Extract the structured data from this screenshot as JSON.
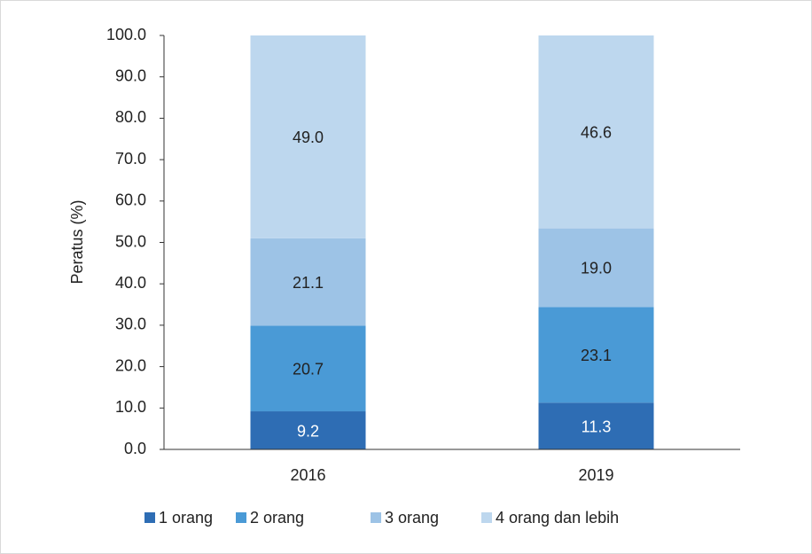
{
  "chart_data": {
    "type": "stacked_bar",
    "y_label": "Peratus (%)",
    "categories": [
      "2016",
      "2019"
    ],
    "series": [
      {
        "name": "1 orang",
        "color": "#2e6db4",
        "values": [
          9.2,
          11.3
        ],
        "value_labels": [
          "9.2",
          "11.3"
        ]
      },
      {
        "name": "2 orang",
        "color": "#4a9ad6",
        "values": [
          20.7,
          23.1
        ],
        "value_labels": [
          "20.7",
          "23.1"
        ]
      },
      {
        "name": "3 orang",
        "color": "#9dc3e6",
        "values": [
          21.1,
          19.0
        ],
        "value_labels": [
          "21.1",
          "19.0"
        ]
      },
      {
        "name": "4 orang dan lebih",
        "color": "#bdd7ee",
        "values": [
          49.0,
          46.6
        ],
        "value_labels": [
          "49.0",
          "46.6"
        ]
      }
    ],
    "ylim": [
      0,
      100
    ],
    "yticks": [
      {
        "value": 0,
        "label": "0.0"
      },
      {
        "value": 10,
        "label": "10.0"
      },
      {
        "value": 20,
        "label": "20.0"
      },
      {
        "value": 30,
        "label": "30.0"
      },
      {
        "value": 40,
        "label": "40.0"
      },
      {
        "value": 50,
        "label": "50.0"
      },
      {
        "value": 60,
        "label": "60.0"
      },
      {
        "value": 70,
        "label": "70.0"
      },
      {
        "value": 80,
        "label": "80.0"
      },
      {
        "value": 90,
        "label": "90.0"
      },
      {
        "value": 100,
        "label": "100.0"
      }
    ],
    "legend": "bottom"
  }
}
